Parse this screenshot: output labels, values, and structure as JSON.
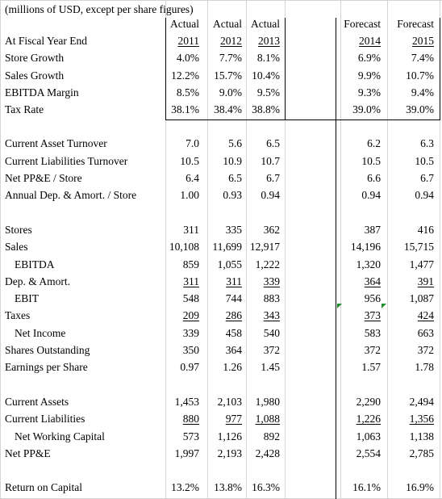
{
  "title": "(millions of USD, except per share figures)",
  "column_types": [
    "Actual",
    "Actual",
    "Actual",
    "Forecast",
    "Forecast"
  ],
  "years": [
    "2011",
    "2012",
    "2013",
    "2014",
    "2015"
  ],
  "rows": [
    {
      "label": "At Fiscal Year End",
      "values": []
    },
    {
      "label": "Store Growth",
      "values": [
        "4.0%",
        "7.7%",
        "8.1%",
        "6.9%",
        "7.4%"
      ]
    },
    {
      "label": "Sales Growth",
      "values": [
        "12.2%",
        "15.7%",
        "10.4%",
        "9.9%",
        "10.7%"
      ]
    },
    {
      "label": "EBITDA Margin",
      "values": [
        "8.5%",
        "9.0%",
        "9.5%",
        "9.3%",
        "9.4%"
      ]
    },
    {
      "label": "Tax Rate",
      "values": [
        "38.1%",
        "38.4%",
        "38.8%",
        "39.0%",
        "39.0%"
      ]
    },
    {
      "label": "Current Asset Turnover",
      "values": [
        "7.0",
        "5.6",
        "6.5",
        "6.2",
        "6.3"
      ]
    },
    {
      "label": "Current Liabilities Turnover",
      "values": [
        "10.5",
        "10.9",
        "10.7",
        "10.5",
        "10.5"
      ]
    },
    {
      "label": "Net PP&E / Store",
      "values": [
        "6.4",
        "6.5",
        "6.7",
        "6.6",
        "6.7"
      ]
    },
    {
      "label": "Annual Dep. & Amort. / Store",
      "values": [
        "1.00",
        "0.93",
        "0.94",
        "0.94",
        "0.94"
      ]
    },
    {
      "label": "Stores",
      "values": [
        "311",
        "335",
        "362",
        "387",
        "416"
      ]
    },
    {
      "label": "Sales",
      "values": [
        "10,108",
        "11,699",
        "12,917",
        "14,196",
        "15,715"
      ]
    },
    {
      "label": "EBITDA",
      "values": [
        "859",
        "1,055",
        "1,222",
        "1,320",
        "1,477"
      ]
    },
    {
      "label": "Dep. & Amort.",
      "values": [
        "311",
        "311",
        "339",
        "364",
        "391"
      ]
    },
    {
      "label": "EBIT",
      "values": [
        "548",
        "744",
        "883",
        "956",
        "1,087"
      ]
    },
    {
      "label": "Taxes",
      "values": [
        "209",
        "286",
        "343",
        "373",
        "424"
      ]
    },
    {
      "label": "Net Income",
      "values": [
        "339",
        "458",
        "540",
        "583",
        "663"
      ]
    },
    {
      "label": "Shares Outstanding",
      "values": [
        "350",
        "364",
        "372",
        "372",
        "372"
      ]
    },
    {
      "label": "Earnings per Share",
      "values": [
        "0.97",
        "1.26",
        "1.45",
        "1.57",
        "1.78"
      ]
    },
    {
      "label": "Current Assets",
      "values": [
        "1,453",
        "2,103",
        "1,980",
        "2,290",
        "2,494"
      ]
    },
    {
      "label": "Current Liabilities",
      "values": [
        "880",
        "977",
        "1,088",
        "1,226",
        "1,356"
      ]
    },
    {
      "label": "Net Working Capital",
      "values": [
        "573",
        "1,126",
        "892",
        "1,063",
        "1,138"
      ]
    },
    {
      "label": "Net PP&E",
      "values": [
        "1,997",
        "2,193",
        "2,428",
        "2,554",
        "2,785"
      ]
    },
    {
      "label": "Return on Capital",
      "values": [
        "13.2%",
        "13.8%",
        "16.3%",
        "16.1%",
        "16.9%"
      ]
    }
  ],
  "colors": {
    "gridline": "#d4d4d4",
    "text": "#000000",
    "comment_flag": "#1e8c2c"
  }
}
